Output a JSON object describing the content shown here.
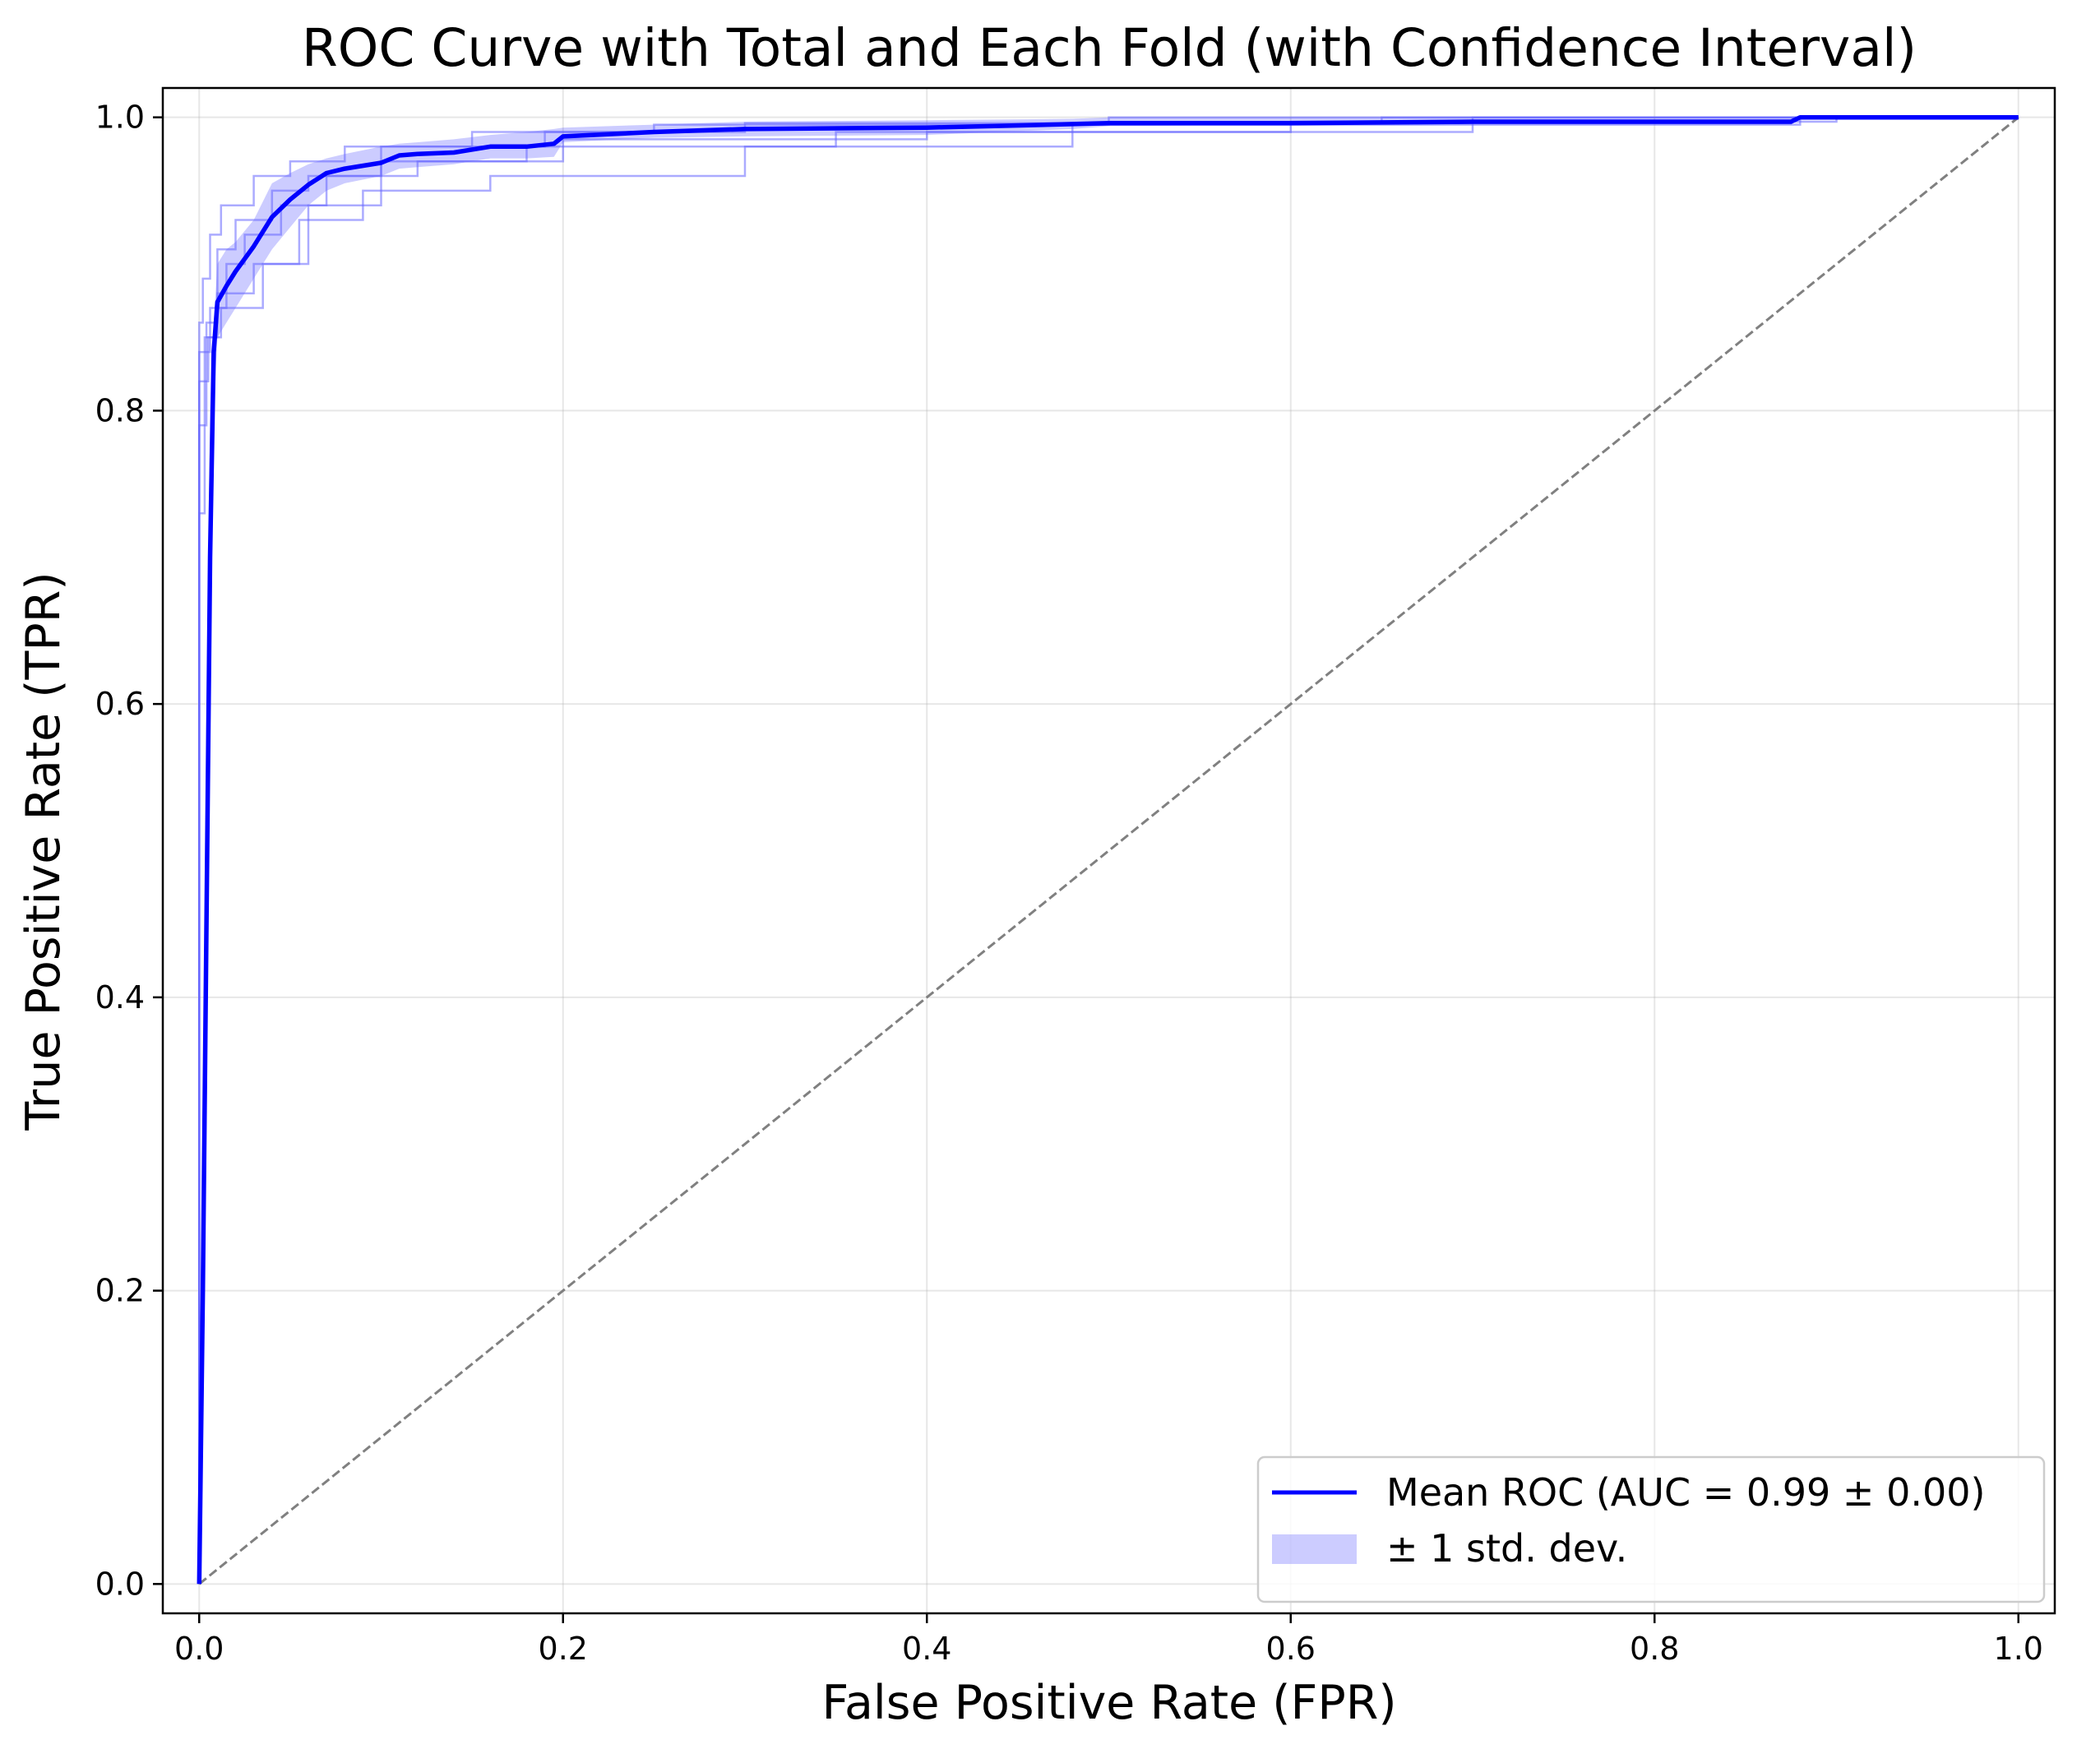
{
  "chart_data": {
    "type": "line",
    "title": "ROC Curve with Total and Each Fold (with Confidence Interval)",
    "xlabel": "False Positive Rate (FPR)",
    "ylabel": "True Positive Rate (TPR)",
    "xlim": [
      -0.02,
      1.02
    ],
    "ylim": [
      -0.02,
      1.02
    ],
    "x_ticks": [
      0.0,
      0.2,
      0.4,
      0.6,
      0.8,
      1.0
    ],
    "x_tick_labels": [
      "0.0",
      "0.2",
      "0.4",
      "0.6",
      "0.8",
      "1.0"
    ],
    "y_ticks": [
      0.0,
      0.2,
      0.4,
      0.6,
      0.8,
      1.0
    ],
    "y_tick_labels": [
      "0.0",
      "0.2",
      "0.4",
      "0.6",
      "0.8",
      "1.0"
    ],
    "grid": true,
    "legend_position": "lower-right",
    "colors": {
      "mean": "#0000ff",
      "band": "#0000ff",
      "folds": "#6666ff",
      "diagonal": "#808080"
    },
    "mean_roc": {
      "label": "Mean ROC (AUC = 0.99 ± 0.00)",
      "x": [
        0.0,
        0.002,
        0.004,
        0.006,
        0.008,
        0.01,
        0.015,
        0.02,
        0.03,
        0.04,
        0.05,
        0.06,
        0.07,
        0.08,
        0.1,
        0.11,
        0.12,
        0.14,
        0.16,
        0.18,
        0.195,
        0.2,
        0.25,
        0.3,
        0.4,
        0.5,
        0.6,
        0.7,
        0.8,
        0.875,
        0.88,
        0.9,
        1.0
      ],
      "y": [
        0.0,
        0.2,
        0.45,
        0.7,
        0.84,
        0.874,
        0.885,
        0.895,
        0.912,
        0.932,
        0.944,
        0.954,
        0.962,
        0.965,
        0.969,
        0.974,
        0.975,
        0.976,
        0.98,
        0.98,
        0.982,
        0.987,
        0.99,
        0.992,
        0.993,
        0.996,
        0.996,
        0.997,
        0.997,
        0.997,
        1.0,
        1.0,
        1.0
      ]
    },
    "std_band": {
      "label": "± 1 std. dev.",
      "x": [
        0.0,
        0.002,
        0.004,
        0.006,
        0.008,
        0.01,
        0.015,
        0.02,
        0.03,
        0.04,
        0.05,
        0.06,
        0.07,
        0.08,
        0.1,
        0.11,
        0.12,
        0.14,
        0.16,
        0.18,
        0.195,
        0.2,
        0.25,
        0.3,
        0.4,
        0.48,
        0.5,
        0.6,
        0.7,
        0.8,
        0.875,
        0.88,
        0.9,
        1.0
      ],
      "upper": [
        0.0,
        0.3,
        0.6,
        0.8,
        0.86,
        0.9,
        0.91,
        0.915,
        0.93,
        0.955,
        0.962,
        0.968,
        0.972,
        0.975,
        0.98,
        0.982,
        0.983,
        0.985,
        0.988,
        0.99,
        0.992,
        0.993,
        0.995,
        0.997,
        0.998,
        0.999,
        1.0,
        1.0,
        1.0,
        1.0,
        1.0,
        1.0,
        1.0,
        1.0
      ],
      "lower": [
        0.0,
        0.1,
        0.3,
        0.6,
        0.8,
        0.85,
        0.86,
        0.87,
        0.89,
        0.91,
        0.925,
        0.94,
        0.95,
        0.955,
        0.96,
        0.965,
        0.966,
        0.968,
        0.972,
        0.972,
        0.973,
        0.983,
        0.986,
        0.987,
        0.988,
        0.992,
        0.994,
        0.995,
        0.995,
        0.995,
        0.995,
        1.0,
        1.0,
        1.0
      ]
    },
    "folds": [
      {
        "x": [
          0.0,
          0.0,
          0.002,
          0.002,
          0.006,
          0.006,
          0.012,
          0.012,
          0.03,
          0.03,
          0.05,
          0.05,
          0.08,
          0.08,
          0.15,
          0.15,
          0.25,
          0.25,
          0.5,
          0.5,
          1.0
        ],
        "y": [
          0.0,
          0.86,
          0.86,
          0.89,
          0.89,
          0.92,
          0.92,
          0.94,
          0.94,
          0.96,
          0.96,
          0.97,
          0.97,
          0.98,
          0.98,
          0.99,
          0.99,
          0.995,
          0.995,
          1.0,
          1.0
        ]
      },
      {
        "x": [
          0.0,
          0.0,
          0.004,
          0.004,
          0.01,
          0.01,
          0.02,
          0.02,
          0.04,
          0.04,
          0.06,
          0.06,
          0.1,
          0.1,
          0.19,
          0.19,
          0.3,
          0.3,
          0.65,
          0.65,
          1.0
        ],
        "y": [
          0.0,
          0.79,
          0.79,
          0.86,
          0.86,
          0.91,
          0.91,
          0.93,
          0.93,
          0.95,
          0.95,
          0.96,
          0.96,
          0.98,
          0.98,
          0.99,
          0.99,
          0.996,
          0.996,
          1.0,
          1.0
        ]
      },
      {
        "x": [
          0.0,
          0.0,
          0.006,
          0.006,
          0.015,
          0.015,
          0.025,
          0.025,
          0.045,
          0.045,
          0.07,
          0.07,
          0.12,
          0.12,
          0.2,
          0.2,
          0.4,
          0.4,
          0.7,
          0.7,
          1.0
        ],
        "y": [
          0.0,
          0.84,
          0.84,
          0.87,
          0.87,
          0.9,
          0.9,
          0.92,
          0.92,
          0.94,
          0.94,
          0.96,
          0.96,
          0.97,
          0.97,
          0.985,
          0.985,
          0.99,
          0.99,
          1.0,
          1.0
        ]
      },
      {
        "x": [
          0.0,
          0.0,
          0.003,
          0.003,
          0.01,
          0.01,
          0.03,
          0.03,
          0.055,
          0.055,
          0.09,
          0.09,
          0.16,
          0.16,
          0.3,
          0.3,
          0.48,
          0.48,
          0.88,
          0.88,
          1.0
        ],
        "y": [
          0.0,
          0.73,
          0.73,
          0.85,
          0.85,
          0.88,
          0.88,
          0.9,
          0.9,
          0.93,
          0.93,
          0.95,
          0.95,
          0.96,
          0.96,
          0.98,
          0.98,
          0.995,
          0.995,
          1.0,
          1.0
        ]
      },
      {
        "x": [
          0.0,
          0.0,
          0.005,
          0.005,
          0.012,
          0.012,
          0.035,
          0.035,
          0.06,
          0.06,
          0.1,
          0.1,
          0.18,
          0.18,
          0.35,
          0.35,
          0.6,
          0.6,
          0.9,
          0.9,
          1.0
        ],
        "y": [
          0.0,
          0.82,
          0.82,
          0.85,
          0.85,
          0.87,
          0.87,
          0.9,
          0.9,
          0.94,
          0.94,
          0.97,
          0.97,
          0.98,
          0.98,
          0.99,
          0.99,
          0.997,
          0.997,
          1.0,
          1.0
        ]
      }
    ],
    "diagonal": {
      "x": [
        0.0,
        1.0
      ],
      "y": [
        0.0,
        1.0
      ]
    }
  }
}
